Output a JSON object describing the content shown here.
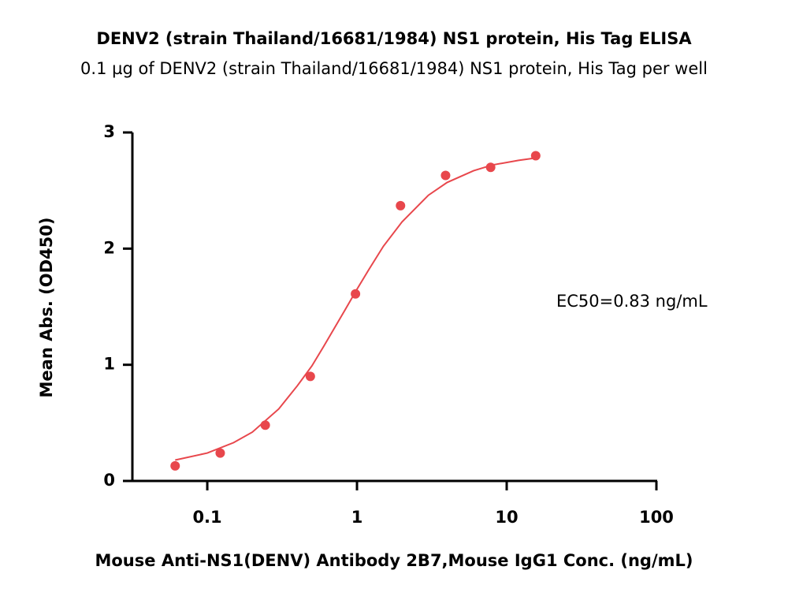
{
  "chart_data": {
    "type": "scatter",
    "title": "DENV2 (strain Thailand/16681/1984) NS1 protein, His Tag ELISA",
    "subtitle": "0.1 µg of DENV2 (strain Thailand/16681/1984) NS1 protein, His Tag per well",
    "xlabel": "Mouse Anti-NS1(DENV) Antibody 2B7,Mouse IgG1 Conc. (ng/mL)",
    "ylabel": "Mean Abs. (OD450)",
    "annotation": "EC50=0.83 ng/mL",
    "xscale": "log",
    "xlim": [
      0.0316,
      100
    ],
    "xticks": [
      0.1,
      1,
      10,
      100
    ],
    "ylim": [
      0,
      3
    ],
    "yticks": [
      0,
      1,
      2,
      3
    ],
    "color": "#e8474c",
    "x": [
      0.061,
      0.122,
      0.244,
      0.488,
      0.977,
      1.953,
      3.906,
      7.8125,
      15.625
    ],
    "values": [
      0.13,
      0.24,
      0.48,
      0.9,
      1.61,
      2.37,
      2.63,
      2.7,
      2.8
    ],
    "fit": {
      "x": [
        0.061,
        0.1,
        0.15,
        0.2,
        0.3,
        0.4,
        0.5,
        0.6,
        0.83,
        1,
        1.2,
        1.5,
        2,
        3,
        4,
        6,
        8,
        12,
        15.6
      ],
      "values": [
        0.18,
        0.24,
        0.33,
        0.42,
        0.62,
        0.82,
        0.99,
        1.16,
        1.47,
        1.65,
        1.82,
        2.02,
        2.23,
        2.46,
        2.57,
        2.67,
        2.72,
        2.76,
        2.78
      ]
    }
  }
}
